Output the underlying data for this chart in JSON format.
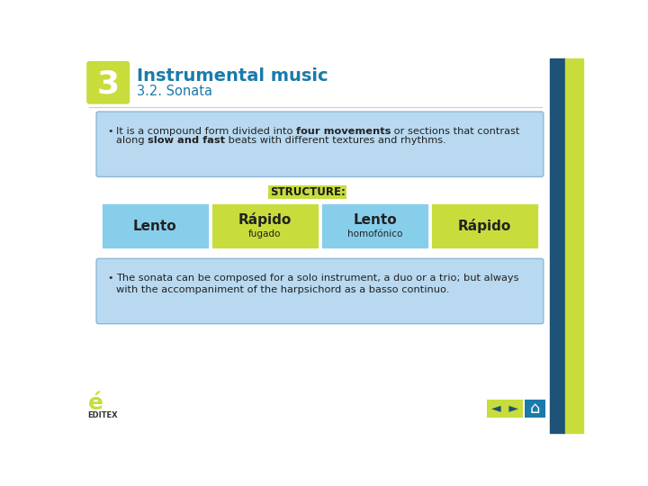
{
  "title_main": "Instrumental music",
  "title_sub": "3.2. Sonata",
  "number": "3",
  "bg_color": "#ffffff",
  "header_box_color": "#c8dc3c",
  "header_text_color": "#ffffff",
  "title_color": "#1a7aab",
  "subtitle_color": "#1a7aab",
  "info_box1_bg": "#b8d9f0",
  "info_box1_border": "#8bb8d8",
  "info_box2_bg": "#b8d9f0",
  "info_box2_border": "#8bb8d8",
  "structure_label_bg": "#c8dc3c",
  "structure_label_text": "#1a1a1a",
  "structure_label": "STRUCTURE:",
  "cells": [
    {
      "label": "Lento",
      "sublabel": "",
      "color": "#87ceeb"
    },
    {
      "label": "Rápido",
      "sublabel": "fugado",
      "color": "#c8dc3c"
    },
    {
      "label": "Lento",
      "sublabel": "homofónico",
      "color": "#87ceeb"
    },
    {
      "label": "Rápido",
      "sublabel": "",
      "color": "#c8dc3c"
    }
  ],
  "bullet1_parts": [
    [
      "It is a compound form divided into ",
      false
    ],
    [
      "four movements",
      true
    ],
    [
      " or sections that contrast\nalong ",
      false
    ],
    [
      "slow and fast",
      true
    ],
    [
      " beats with different textures and rhythms.",
      false
    ]
  ],
  "bullet2_line1": "The sonata can be composed for a solo instrument, a duo or a trio; but always",
  "bullet2_line2": "with the accompaniment of the harpsichord as a basso continuo.",
  "right_stripe1_color": "#1e5276",
  "right_stripe2_color": "#c8dc3c",
  "nav_bg": "#c8dc3c",
  "nav_arrow_color": "#1e5276",
  "home_bg": "#1a7aab",
  "logo_text": "EDITEX",
  "logo_green": "#c8dc3c",
  "logo_red": "#cc2222"
}
